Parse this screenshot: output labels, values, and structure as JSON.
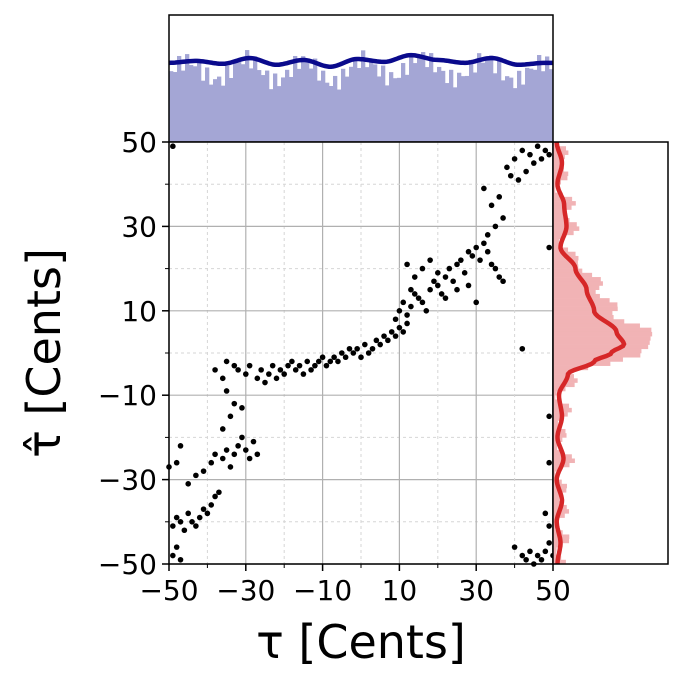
{
  "chart_data": {
    "type": "scatter",
    "xlabel": "τ [Cents]",
    "ylabel": "τ̂ [Cents]",
    "xlim": [
      -50,
      50
    ],
    "ylim": [
      -50,
      50
    ],
    "x_ticks": [
      -50,
      -30,
      -10,
      10,
      30,
      50
    ],
    "x_tick_labels": [
      "−50",
      "−30",
      "−10",
      "10",
      "30",
      "50"
    ],
    "y_ticks": [
      -50,
      -30,
      -10,
      10,
      30,
      50
    ],
    "y_tick_labels": [
      "−50",
      "−30",
      "−10",
      "10",
      "30",
      "50"
    ],
    "grid": true,
    "series": [
      {
        "values": [
          [
            -49,
            -48
          ],
          [
            -48,
            -46
          ],
          [
            -47,
            -49
          ],
          [
            -49,
            49
          ],
          [
            -50,
            -27
          ],
          [
            -48,
            -26
          ],
          [
            -47,
            -22
          ],
          [
            -49,
            -41
          ],
          [
            -48,
            -39
          ],
          [
            -47,
            -40
          ],
          [
            -46,
            -42
          ],
          [
            -45,
            -38
          ],
          [
            -44,
            -40
          ],
          [
            -43,
            -41
          ],
          [
            -42,
            -39
          ],
          [
            -41,
            -37
          ],
          [
            -40,
            -38
          ],
          [
            -39,
            -36
          ],
          [
            -38,
            -34
          ],
          [
            -37,
            -33
          ],
          [
            -45,
            -31
          ],
          [
            -43,
            -29
          ],
          [
            -41,
            -28
          ],
          [
            -39,
            -26
          ],
          [
            -38,
            -24
          ],
          [
            -36,
            -25
          ],
          [
            -35,
            -23
          ],
          [
            -34,
            -27
          ],
          [
            -33,
            -24
          ],
          [
            -32,
            -22
          ],
          [
            -31,
            -20
          ],
          [
            -30,
            -23
          ],
          [
            -29,
            -25
          ],
          [
            -28,
            -21
          ],
          [
            -27,
            -24
          ],
          [
            -36,
            -18
          ],
          [
            -33,
            -12
          ],
          [
            -34,
            -15
          ],
          [
            -35,
            -9
          ],
          [
            -31,
            -13
          ],
          [
            -38,
            -4
          ],
          [
            -36,
            -6
          ],
          [
            -35,
            -2
          ],
          [
            -33,
            -3
          ],
          [
            -32,
            -4
          ],
          [
            -30,
            -5
          ],
          [
            -29,
            -3
          ],
          [
            -27,
            -6
          ],
          [
            -26,
            -4
          ],
          [
            -25,
            -7
          ],
          [
            -24,
            -5
          ],
          [
            -23,
            -3
          ],
          [
            -22,
            -6
          ],
          [
            -21,
            -4
          ],
          [
            -20,
            -5
          ],
          [
            -19,
            -3
          ],
          [
            -18,
            -2
          ],
          [
            -17,
            -4
          ],
          [
            -16,
            -3
          ],
          [
            -15,
            -5
          ],
          [
            -14,
            -2
          ],
          [
            -13,
            -4
          ],
          [
            -12,
            -3
          ],
          [
            -11,
            -2
          ],
          [
            -10,
            -1
          ],
          [
            -9,
            -3
          ],
          [
            -8,
            -2
          ],
          [
            -7,
            -1
          ],
          [
            -6,
            -2
          ],
          [
            -5,
            0
          ],
          [
            -4,
            -1
          ],
          [
            -3,
            1
          ],
          [
            -2,
            0
          ],
          [
            -1,
            1
          ],
          [
            0,
            -1
          ],
          [
            1,
            2
          ],
          [
            2,
            0
          ],
          [
            3,
            1
          ],
          [
            4,
            3
          ],
          [
            5,
            2
          ],
          [
            6,
            4
          ],
          [
            7,
            3
          ],
          [
            8,
            5
          ],
          [
            9,
            4
          ],
          [
            10,
            6
          ],
          [
            11,
            5
          ],
          [
            12,
            7
          ],
          [
            9,
            8
          ],
          [
            10,
            10
          ],
          [
            11,
            12
          ],
          [
            12,
            9
          ],
          [
            13,
            11
          ],
          [
            14,
            14
          ],
          [
            15,
            13
          ],
          [
            16,
            12
          ],
          [
            17,
            10
          ],
          [
            18,
            15
          ],
          [
            19,
            17
          ],
          [
            20,
            16
          ],
          [
            21,
            14
          ],
          [
            22,
            18
          ],
          [
            23,
            20
          ],
          [
            24,
            17
          ],
          [
            25,
            21
          ],
          [
            26,
            22
          ],
          [
            27,
            19
          ],
          [
            28,
            24
          ],
          [
            29,
            23
          ],
          [
            30,
            25
          ],
          [
            31,
            22
          ],
          [
            32,
            26
          ],
          [
            33,
            24
          ],
          [
            34,
            21
          ],
          [
            35,
            20
          ],
          [
            36,
            18
          ],
          [
            28,
            16
          ],
          [
            25,
            15
          ],
          [
            22,
            13
          ],
          [
            20,
            19
          ],
          [
            12,
            21
          ],
          [
            14,
            18
          ],
          [
            16,
            20
          ],
          [
            18,
            22
          ],
          [
            13,
            15
          ],
          [
            37,
            17
          ],
          [
            30,
            12
          ],
          [
            38,
            44
          ],
          [
            40,
            46
          ],
          [
            42,
            48
          ],
          [
            44,
            47
          ],
          [
            46,
            49
          ],
          [
            45,
            45
          ],
          [
            43,
            43
          ],
          [
            41,
            41
          ],
          [
            39,
            42
          ],
          [
            47,
            46
          ],
          [
            48,
            48
          ],
          [
            49,
            47
          ],
          [
            36,
            37
          ],
          [
            34,
            35
          ],
          [
            32,
            39
          ],
          [
            35,
            30
          ],
          [
            37,
            32
          ],
          [
            33,
            28
          ],
          [
            46,
            -48
          ],
          [
            47,
            -49
          ],
          [
            48,
            -47
          ],
          [
            49,
            -45
          ],
          [
            50,
            -48
          ],
          [
            45,
            -50
          ],
          [
            44,
            -47
          ],
          [
            43,
            -49
          ],
          [
            49,
            -41
          ],
          [
            48,
            -38
          ],
          [
            40,
            -46
          ],
          [
            42,
            -48
          ],
          [
            49,
            -15
          ],
          [
            49,
            25
          ],
          [
            49,
            -26
          ],
          [
            42,
            1
          ]
        ]
      }
    ],
    "top_marginal": {
      "type": "histogram_with_density",
      "bar_color": "#a4a6d5",
      "line_color": "#0a0a8c",
      "x": [
        -50,
        -43,
        -36,
        -29,
        -22,
        -15,
        -8,
        -1,
        6,
        13,
        20,
        27,
        34,
        41,
        48,
        50
      ],
      "density": [
        0.82,
        0.84,
        0.81,
        0.87,
        0.8,
        0.85,
        0.78,
        0.86,
        0.83,
        0.9,
        0.85,
        0.82,
        0.87,
        0.8,
        0.82,
        0.82
      ]
    },
    "right_marginal": {
      "type": "histogram_with_density",
      "bar_color": "#f1b3b5",
      "line_color": "#d62728",
      "y": [
        50,
        45,
        40,
        35,
        30,
        25,
        20,
        15,
        10,
        5,
        2,
        0,
        -2,
        -5,
        -10,
        -15,
        -20,
        -25,
        -30,
        -35,
        -40,
        -45,
        -50
      ],
      "density": [
        0.05,
        0.12,
        0.06,
        0.15,
        0.18,
        0.1,
        0.3,
        0.45,
        0.55,
        0.85,
        0.95,
        0.78,
        0.55,
        0.2,
        0.08,
        0.12,
        0.06,
        0.14,
        0.05,
        0.12,
        0.05,
        0.1,
        0.06
      ]
    }
  }
}
